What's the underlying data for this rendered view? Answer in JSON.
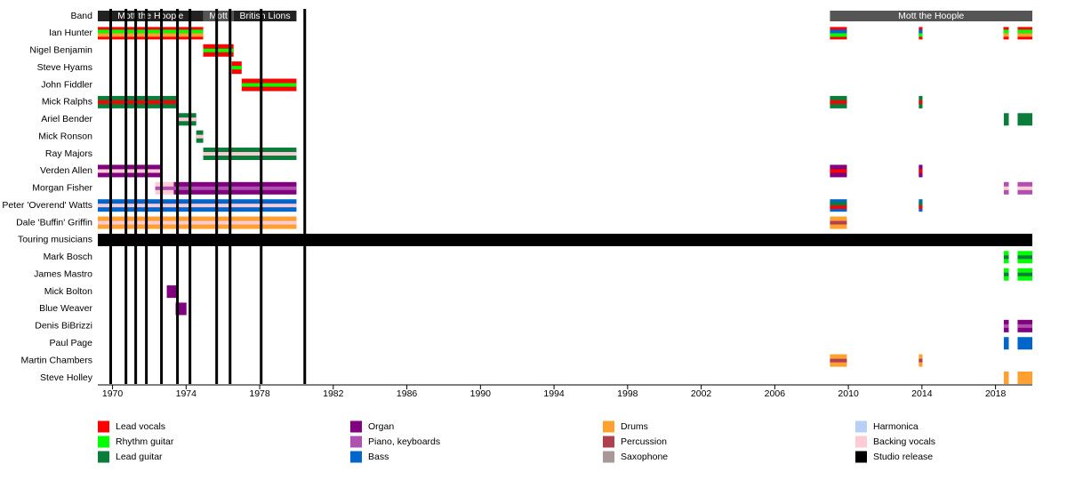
{
  "chart_data": {
    "type": "timeline",
    "xlim": [
      1969.2,
      2020.0
    ],
    "xticks": [
      1970,
      1974,
      1978,
      1982,
      1986,
      1990,
      1994,
      1998,
      2002,
      2006,
      2010,
      2014,
      2018
    ],
    "band_label": "Band",
    "bands": [
      {
        "name": "Mott the Hoople",
        "start": 1969.2,
        "end": 1974.93
      },
      {
        "name": "Mott",
        "start": 1974.93,
        "end": 1976.58
      },
      {
        "name": "British Lions",
        "start": 1976.58,
        "end": 1980.0
      },
      {
        "name": "Mott the Hoople",
        "start": 2009.0,
        "end": 2020.0
      }
    ],
    "legend": [
      {
        "name": "Lead vocals",
        "color": "#ff0000"
      },
      {
        "name": "Rhythm guitar",
        "color": "#00ff00"
      },
      {
        "name": "Lead guitar",
        "color": "#0a7d3a"
      },
      {
        "name": "Organ",
        "color": "#800080"
      },
      {
        "name": "Piano, keyboards",
        "color": "#b050b0"
      },
      {
        "name": "Bass",
        "color": "#0066cc"
      },
      {
        "name": "Drums",
        "color": "#ffa030"
      },
      {
        "name": "Percussion",
        "color": "#b04050"
      },
      {
        "name": "Saxophone",
        "color": "#a89898"
      },
      {
        "name": "Harmonica",
        "color": "#b8d0f8"
      },
      {
        "name": "Backing vocals",
        "color": "#ffccd5"
      },
      {
        "name": "Studio release",
        "color": "#000000"
      }
    ],
    "studio_releases": [
      1969.9,
      1970.73,
      1971.26,
      1971.84,
      1972.66,
      1973.53,
      1974.21,
      1975.66,
      1976.39,
      1978.08,
      1980.45
    ],
    "rows": [
      {
        "name": "Ian Hunter",
        "bars": [
          {
            "start": 1969.2,
            "end": 1974.93,
            "roles": [
              "Lead vocals",
              "Rhythm guitar",
              "Drums"
            ]
          },
          {
            "start": 2009.0,
            "end": 2009.92,
            "roles": [
              "Lead vocals",
              "Bass",
              "Rhythm guitar"
            ]
          },
          {
            "start": 2013.83,
            "end": 2014.03,
            "roles": [
              "Lead vocals",
              "Bass",
              "Rhythm guitar"
            ]
          },
          {
            "start": 2018.43,
            "end": 2018.72,
            "roles": [
              "Lead vocals",
              "Rhythm guitar",
              "Drums"
            ]
          },
          {
            "start": 2019.2,
            "end": 2020.0,
            "roles": [
              "Lead vocals",
              "Rhythm guitar",
              "Drums"
            ]
          }
        ]
      },
      {
        "name": "Nigel Benjamin",
        "bars": [
          {
            "start": 1974.93,
            "end": 1976.58,
            "roles": [
              "Lead vocals",
              "Rhythm guitar"
            ]
          }
        ]
      },
      {
        "name": "Steve Hyams",
        "bars": [
          {
            "start": 1976.48,
            "end": 1977.02,
            "roles": [
              "Lead vocals",
              "Rhythm guitar"
            ]
          }
        ]
      },
      {
        "name": "John Fiddler",
        "bars": [
          {
            "start": 1977.02,
            "end": 1980.0,
            "roles": [
              "Lead vocals",
              "Rhythm guitar"
            ]
          }
        ]
      },
      {
        "name": "Mick Ralphs",
        "bars": [
          {
            "start": 1969.2,
            "end": 1973.58,
            "roles": [
              "Lead guitar",
              "Lead vocals"
            ]
          },
          {
            "start": 2009.0,
            "end": 2009.92,
            "roles": [
              "Lead guitar",
              "Lead vocals"
            ]
          },
          {
            "start": 2013.83,
            "end": 2014.03,
            "roles": [
              "Lead guitar",
              "Lead vocals"
            ]
          }
        ]
      },
      {
        "name": "Ariel Bender",
        "bars": [
          {
            "start": 1973.58,
            "end": 1974.55,
            "roles": [
              "Lead guitar",
              "Backing vocals"
            ]
          },
          {
            "start": 2018.45,
            "end": 2018.72,
            "roles": [
              "Lead guitar"
            ]
          },
          {
            "start": 2019.2,
            "end": 2020.0,
            "roles": [
              "Lead guitar"
            ]
          }
        ]
      },
      {
        "name": "Mick Ronson",
        "bars": [
          {
            "start": 1974.55,
            "end": 1974.93,
            "roles": [
              "Lead guitar",
              "Backing vocals"
            ]
          }
        ]
      },
      {
        "name": "Ray Majors",
        "bars": [
          {
            "start": 1974.93,
            "end": 1980.0,
            "roles": [
              "Lead guitar",
              "Backing vocals"
            ]
          }
        ]
      },
      {
        "name": "Verden Allen",
        "bars": [
          {
            "start": 1969.2,
            "end": 1972.66,
            "roles": [
              "Organ",
              "Backing vocals"
            ]
          },
          {
            "start": 2009.0,
            "end": 2009.92,
            "roles": [
              "Organ",
              "Lead vocals"
            ]
          },
          {
            "start": 2013.83,
            "end": 2014.03,
            "roles": [
              "Organ",
              "Lead vocals"
            ]
          }
        ]
      },
      {
        "name": "Morgan Fisher",
        "bars": [
          {
            "start": 1972.32,
            "end": 1973.33,
            "roles": [
              "Backing vocals",
              "Piano, keyboards"
            ]
          },
          {
            "start": 1973.33,
            "end": 1980.0,
            "roles": [
              "Organ",
              "Piano, keyboards"
            ]
          },
          {
            "start": 2018.45,
            "end": 2018.72,
            "roles": [
              "Piano, keyboards",
              "Backing vocals"
            ]
          },
          {
            "start": 2019.2,
            "end": 2020.0,
            "roles": [
              "Piano, keyboards",
              "Backing vocals"
            ]
          }
        ]
      },
      {
        "name": "Peter 'Overend' Watts",
        "bars": [
          {
            "start": 1969.2,
            "end": 1980.0,
            "roles": [
              "Bass",
              "Backing vocals"
            ]
          },
          {
            "start": 2009.0,
            "end": 2009.92,
            "roles": [
              "Bass",
              "Lead guitar",
              "Lead vocals"
            ]
          },
          {
            "start": 2013.83,
            "end": 2014.03,
            "roles": [
              "Bass",
              "Lead guitar",
              "Lead vocals"
            ]
          }
        ]
      },
      {
        "name": "Dale 'Buffin' Griffin",
        "bars": [
          {
            "start": 1969.2,
            "end": 1980.0,
            "roles": [
              "Drums",
              "Backing vocals"
            ]
          },
          {
            "start": 2009.0,
            "end": 2009.92,
            "roles": [
              "Drums",
              "Percussion"
            ]
          }
        ]
      },
      {
        "name": "Touring musicians",
        "bars": [
          {
            "start": 1969.2,
            "end": 2020.0,
            "roles": [
              "Studio release"
            ]
          }
        ]
      },
      {
        "name": "Mark Bosch",
        "bars": [
          {
            "start": 2018.45,
            "end": 2018.72,
            "roles": [
              "Rhythm guitar",
              "Lead guitar"
            ]
          },
          {
            "start": 2019.2,
            "end": 2020.0,
            "roles": [
              "Rhythm guitar",
              "Lead guitar"
            ]
          }
        ]
      },
      {
        "name": "James Mastro",
        "bars": [
          {
            "start": 2018.45,
            "end": 2018.72,
            "roles": [
              "Rhythm guitar",
              "Lead guitar"
            ]
          },
          {
            "start": 2019.2,
            "end": 2020.0,
            "roles": [
              "Rhythm guitar",
              "Lead guitar"
            ]
          }
        ]
      },
      {
        "name": "Mick Bolton",
        "bars": [
          {
            "start": 1972.95,
            "end": 1973.53,
            "roles": [
              "Organ"
            ]
          }
        ]
      },
      {
        "name": "Blue Weaver",
        "bars": [
          {
            "start": 1973.43,
            "end": 1974.02,
            "roles": [
              "Organ"
            ]
          }
        ]
      },
      {
        "name": "Denis BiBrizzi",
        "bars": [
          {
            "start": 2018.45,
            "end": 2018.72,
            "roles": [
              "Organ",
              "Piano, keyboards"
            ]
          },
          {
            "start": 2019.2,
            "end": 2020.0,
            "roles": [
              "Organ",
              "Piano, keyboards"
            ]
          }
        ]
      },
      {
        "name": "Paul Page",
        "bars": [
          {
            "start": 2018.45,
            "end": 2018.72,
            "roles": [
              "Bass"
            ]
          },
          {
            "start": 2019.2,
            "end": 2020.0,
            "roles": [
              "Bass"
            ]
          }
        ]
      },
      {
        "name": "Martin Chambers",
        "bars": [
          {
            "start": 2009.0,
            "end": 2009.92,
            "roles": [
              "Drums",
              "Percussion"
            ]
          },
          {
            "start": 2013.83,
            "end": 2014.03,
            "roles": [
              "Drums",
              "Percussion"
            ]
          }
        ]
      },
      {
        "name": "Steve Holley",
        "bars": [
          {
            "start": 2018.45,
            "end": 2018.72,
            "roles": [
              "Drums"
            ]
          },
          {
            "start": 2019.2,
            "end": 2020.0,
            "roles": [
              "Drums"
            ]
          }
        ]
      }
    ]
  }
}
